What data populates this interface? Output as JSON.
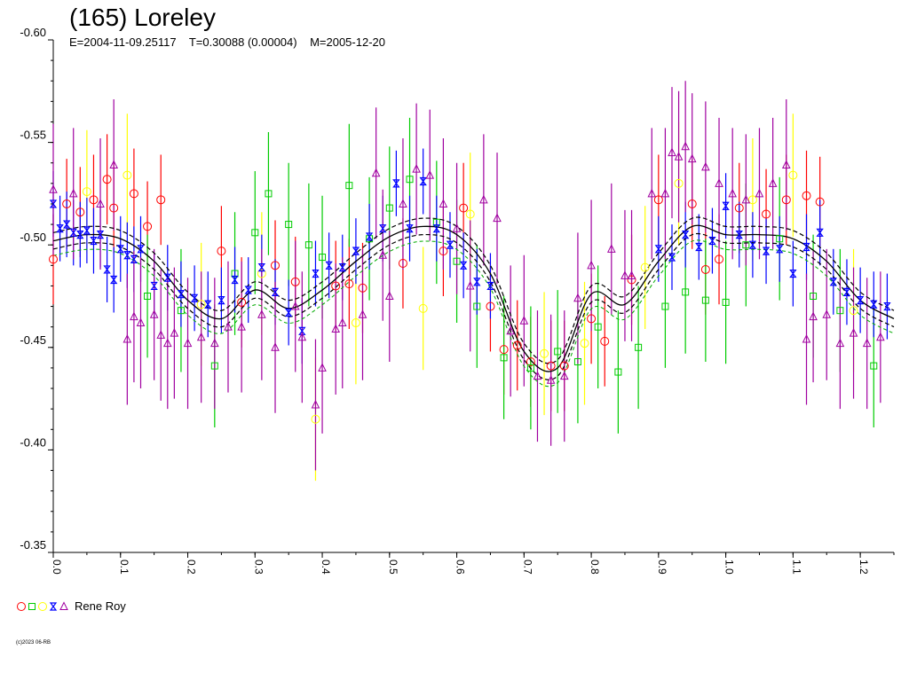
{
  "title": "(165) Loreley",
  "meta": {
    "epoch": "E=2004-11-09.25117",
    "period": "T=0.30088 (0.00004)",
    "modified": "M=2005-12-20"
  },
  "legend": {
    "label": "Rene Roy",
    "symbols": [
      "circle",
      "square",
      "circle",
      "star",
      "triangle"
    ],
    "colors": [
      "#ff0000",
      "#00cc00",
      "#ffff00",
      "#0000ff",
      "#a000a0"
    ]
  },
  "copyright": "(c)2023 06-RB",
  "chart_data": {
    "type": "scatter",
    "title": "(165) Loreley",
    "xlabel": "",
    "ylabel": "",
    "xlim": [
      0.0,
      1.25
    ],
    "ylim": [
      -0.6,
      -0.35
    ],
    "y_inverted": true,
    "x_ticks": [
      "0.0",
      "0.1",
      "0.2",
      "0.3",
      "0.4",
      "0.5",
      "0.6",
      "0.7",
      "0.8",
      "0.9",
      "1.0",
      "1.1",
      "1.2"
    ],
    "y_ticks": [
      "-0.60",
      "-0.55",
      "-0.50",
      "-0.45",
      "-0.40",
      "-0.35"
    ],
    "fit_curve": {
      "x": [
        0.0,
        0.05,
        0.1,
        0.15,
        0.2,
        0.25,
        0.3,
        0.35,
        0.4,
        0.45,
        0.5,
        0.55,
        0.6,
        0.65,
        0.7,
        0.75,
        0.8,
        0.85,
        0.9,
        0.95,
        1.0,
        1.05,
        1.1,
        1.15,
        1.2,
        1.25
      ],
      "y": [
        -0.502,
        -0.505,
        -0.503,
        -0.492,
        -0.473,
        -0.464,
        -0.478,
        -0.469,
        -0.478,
        -0.492,
        -0.504,
        -0.509,
        -0.505,
        -0.486,
        -0.448,
        -0.44,
        -0.476,
        -0.471,
        -0.492,
        -0.509,
        -0.505,
        -0.505,
        -0.503,
        -0.492,
        -0.473,
        -0.464
      ],
      "band": 0.004,
      "colors": [
        "#000000",
        "#000000",
        "#00aa00"
      ]
    },
    "series": [
      {
        "symbol": "circle",
        "color": "#ff0000",
        "error": 0.022,
        "x": [
          0.0,
          0.02,
          0.04,
          0.06,
          0.08,
          0.09,
          0.12,
          0.14,
          0.16,
          0.25,
          0.28,
          0.33,
          0.36,
          0.42,
          0.44,
          0.46,
          0.52,
          0.58,
          0.61,
          0.65,
          0.67,
          0.69,
          0.71,
          0.74,
          0.76,
          0.8,
          0.82,
          0.86,
          0.9,
          0.95,
          0.97,
          0.99,
          1.02,
          1.06,
          1.09,
          1.12,
          1.14
        ],
        "y": [
          -0.493,
          -0.52,
          -0.516,
          -0.522,
          -0.532,
          -0.518,
          -0.525,
          -0.509,
          -0.522,
          -0.497,
          -0.472,
          -0.49,
          -0.482,
          -0.48,
          -0.481,
          -0.479,
          -0.491,
          -0.497,
          -0.518,
          -0.47,
          -0.449,
          -0.451,
          -0.443,
          -0.441,
          -0.441,
          -0.464,
          -0.453,
          -0.483,
          -0.522,
          -0.52,
          -0.488,
          -0.493,
          -0.518,
          -0.515,
          -0.522,
          -0.524,
          -0.521
        ]
      },
      {
        "symbol": "square",
        "color": "#00cc00",
        "error": 0.03,
        "x": [
          0.14,
          0.19,
          0.24,
          0.27,
          0.3,
          0.32,
          0.35,
          0.38,
          0.4,
          0.44,
          0.47,
          0.5,
          0.53,
          0.57,
          0.6,
          0.63,
          0.67,
          0.71,
          0.75,
          0.78,
          0.81,
          0.84,
          0.87,
          0.91,
          0.94,
          0.97,
          1.0,
          1.03,
          1.08,
          1.13,
          1.17,
          1.22
        ],
        "y": [
          -0.475,
          -0.468,
          -0.441,
          -0.486,
          -0.506,
          -0.525,
          -0.51,
          -0.5,
          -0.494,
          -0.529,
          -0.503,
          -0.518,
          -0.532,
          -0.511,
          -0.492,
          -0.47,
          -0.445,
          -0.44,
          -0.448,
          -0.443,
          -0.46,
          -0.438,
          -0.45,
          -0.47,
          -0.477,
          -0.473,
          -0.472,
          -0.5,
          -0.503,
          -0.475,
          -0.468,
          -0.441
        ]
      },
      {
        "symbol": "circle",
        "color": "#ffff00",
        "error": 0.03,
        "x": [
          0.05,
          0.11,
          0.22,
          0.31,
          0.39,
          0.45,
          0.55,
          0.62,
          0.73,
          0.79,
          0.88,
          0.93,
          1.04,
          1.1,
          1.19
        ],
        "y": [
          -0.526,
          -0.534,
          -0.471,
          -0.486,
          -0.415,
          -0.462,
          -0.469,
          -0.515,
          -0.447,
          -0.452,
          -0.489,
          -0.53,
          -0.522,
          -0.534,
          -0.468
        ]
      },
      {
        "symbol": "star",
        "color": "#0000ff",
        "error": 0.016,
        "x": [
          0.0,
          0.01,
          0.02,
          0.03,
          0.04,
          0.05,
          0.06,
          0.07,
          0.08,
          0.09,
          0.1,
          0.11,
          0.12,
          0.13,
          0.15,
          0.17,
          0.19,
          0.21,
          0.23,
          0.25,
          0.27,
          0.29,
          0.31,
          0.33,
          0.35,
          0.37,
          0.39,
          0.41,
          0.43,
          0.45,
          0.47,
          0.49,
          0.51,
          0.53,
          0.55,
          0.57,
          0.59,
          0.61,
          0.63,
          0.65,
          0.9,
          0.92,
          0.94,
          0.96,
          0.98,
          1.0,
          1.02,
          1.04,
          1.06,
          1.08,
          1.1,
          1.12,
          1.14,
          1.16,
          1.18,
          1.2,
          1.22,
          1.24
        ],
        "y": [
          -0.52,
          -0.508,
          -0.51,
          -0.506,
          -0.505,
          -0.507,
          -0.502,
          -0.505,
          -0.488,
          -0.483,
          -0.498,
          -0.495,
          -0.493,
          -0.498,
          -0.48,
          -0.484,
          -0.476,
          -0.474,
          -0.471,
          -0.473,
          -0.483,
          -0.478,
          -0.489,
          -0.477,
          -0.467,
          -0.458,
          -0.486,
          -0.49,
          -0.489,
          -0.497,
          -0.504,
          -0.508,
          -0.53,
          -0.508,
          -0.531,
          -0.508,
          -0.5,
          -0.49,
          -0.482,
          -0.48,
          -0.498,
          -0.494,
          -0.505,
          -0.499,
          -0.502,
          -0.519,
          -0.505,
          -0.5,
          -0.497,
          -0.498,
          -0.486,
          -0.499,
          -0.506,
          -0.482,
          -0.477,
          -0.473,
          -0.471,
          -0.47
        ]
      },
      {
        "symbol": "triangle",
        "color": "#a000a0",
        "error": 0.032,
        "x": [
          0.0,
          0.03,
          0.07,
          0.09,
          0.11,
          0.12,
          0.13,
          0.15,
          0.16,
          0.17,
          0.18,
          0.2,
          0.22,
          0.24,
          0.26,
          0.28,
          0.31,
          0.33,
          0.36,
          0.37,
          0.39,
          0.4,
          0.42,
          0.43,
          0.46,
          0.48,
          0.49,
          0.5,
          0.52,
          0.54,
          0.56,
          0.58,
          0.6,
          0.62,
          0.64,
          0.66,
          0.68,
          0.7,
          0.72,
          0.74,
          0.76,
          0.78,
          0.8,
          0.83,
          0.85,
          0.86,
          0.89,
          0.91,
          0.92,
          0.93,
          0.94,
          0.95,
          0.97,
          0.99,
          1.01,
          1.03,
          1.05,
          1.07,
          1.09,
          1.12,
          1.13,
          1.15,
          1.17,
          1.19,
          1.21,
          1.23
        ],
        "y": [
          -0.527,
          -0.525,
          -0.52,
          -0.539,
          -0.454,
          -0.465,
          -0.462,
          -0.466,
          -0.456,
          -0.452,
          -0.457,
          -0.452,
          -0.455,
          -0.452,
          -0.46,
          -0.46,
          -0.466,
          -0.45,
          -0.47,
          -0.455,
          -0.422,
          -0.44,
          -0.459,
          -0.462,
          -0.466,
          -0.535,
          -0.495,
          -0.475,
          -0.52,
          -0.537,
          -0.534,
          -0.52,
          -0.508,
          -0.48,
          -0.522,
          -0.513,
          -0.458,
          -0.463,
          -0.436,
          -0.434,
          -0.436,
          -0.474,
          -0.49,
          -0.498,
          -0.485,
          -0.485,
          -0.525,
          -0.525,
          -0.545,
          -0.543,
          -0.548,
          -0.542,
          -0.538,
          -0.53,
          -0.525,
          -0.522,
          -0.525,
          -0.53,
          -0.539,
          -0.454,
          -0.465,
          -0.466,
          -0.452,
          -0.457,
          -0.452,
          -0.455
        ]
      }
    ]
  }
}
